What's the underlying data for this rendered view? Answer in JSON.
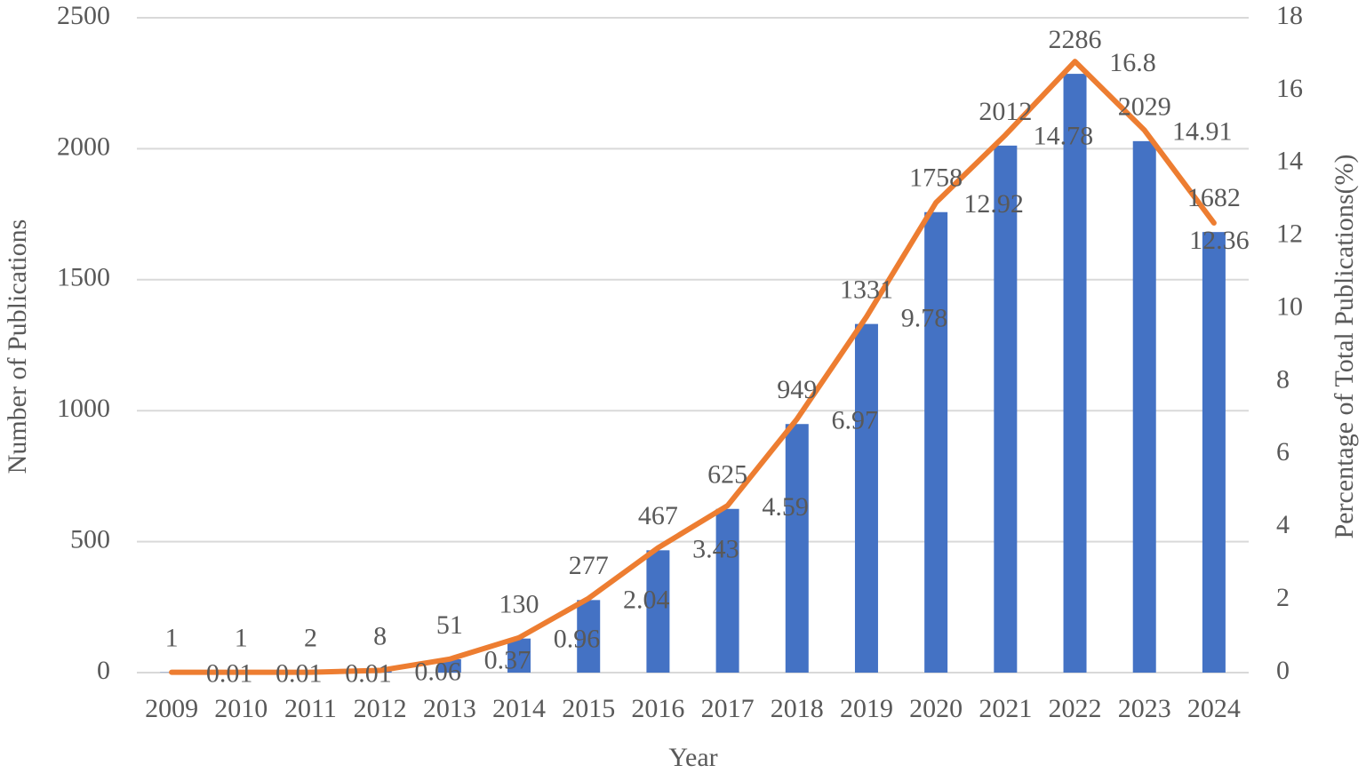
{
  "chart_data": {
    "type": "bar_line",
    "categories": [
      "2009",
      "2010",
      "2011",
      "2012",
      "2013",
      "2014",
      "2015",
      "2016",
      "2017",
      "2018",
      "2019",
      "2020",
      "2021",
      "2022",
      "2023",
      "2024"
    ],
    "series": [
      {
        "name": "Number of Publications",
        "type": "bar",
        "color": "#4472c4",
        "values": [
          1,
          1,
          2,
          8,
          51,
          130,
          277,
          467,
          625,
          949,
          1331,
          1758,
          2012,
          2286,
          2029,
          1682
        ]
      },
      {
        "name": "Percentage of Total Publications(%)",
        "type": "line",
        "axis": "y2",
        "color": "#ed7d31",
        "values": [
          0.01,
          0.01,
          0.01,
          0.06,
          0.37,
          0.96,
          2.04,
          3.43,
          4.59,
          6.97,
          9.78,
          12.92,
          14.78,
          16.8,
          14.91,
          12.36
        ]
      }
    ],
    "x_label": "Year",
    "y_label": "Number of Publications",
    "y2_label": "Percentage of Total Publications(%)",
    "ylim": [
      0,
      2500
    ],
    "yticks": [
      0,
      500,
      1000,
      1500,
      2000,
      2500
    ],
    "y2lim": [
      0,
      18
    ],
    "y2ticks": [
      0,
      2,
      4,
      6,
      8,
      10,
      12,
      14,
      16,
      18
    ],
    "grid": true
  }
}
